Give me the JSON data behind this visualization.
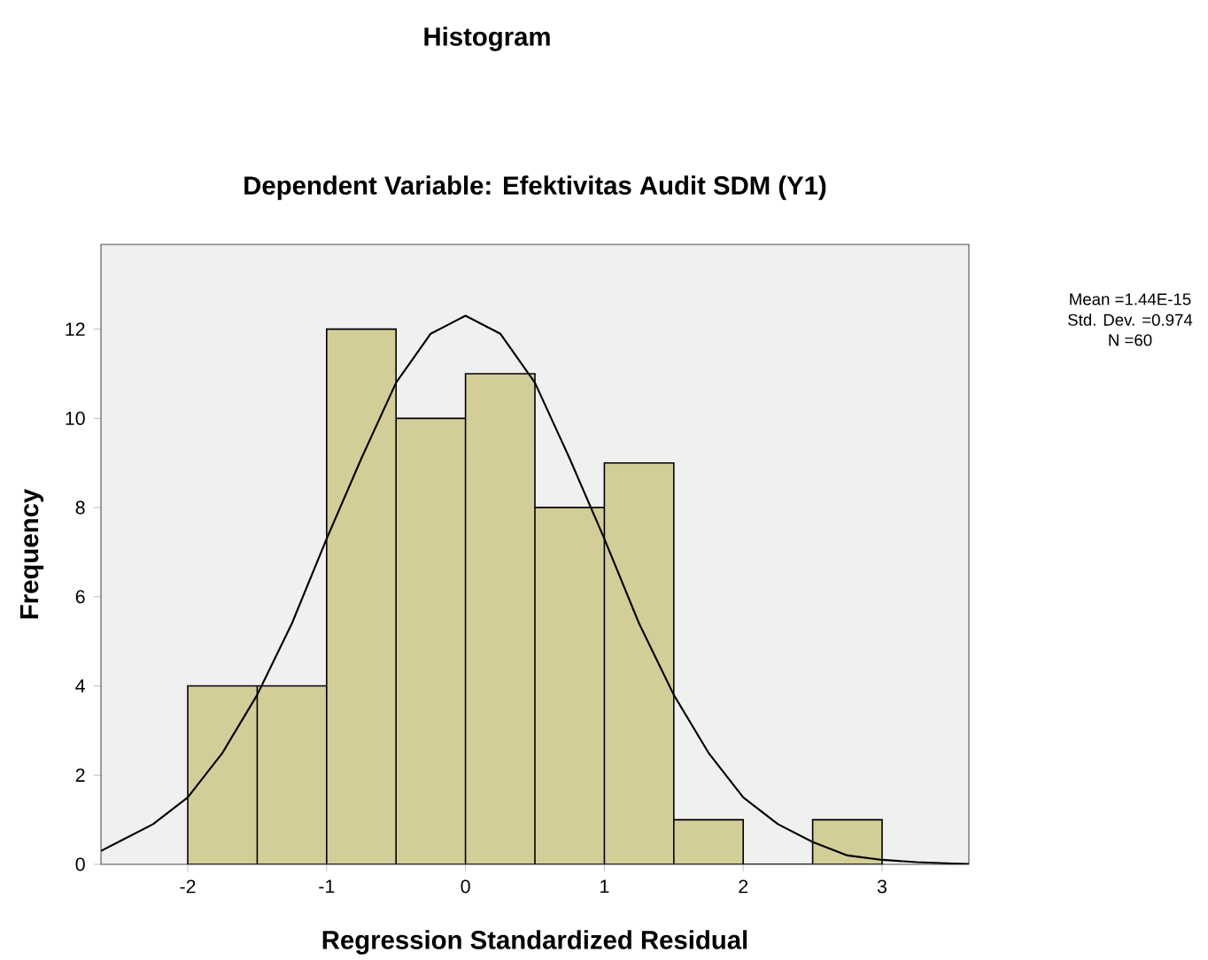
{
  "chart_data": {
    "type": "histogram",
    "title": "Histogram",
    "subtitle": "Dependent Variable: Efektivitas Audit SDM (Y1)",
    "xlabel": "Regression Standardized Residual",
    "ylabel": "Frequency",
    "bins": [
      -2,
      -1.5,
      -1,
      -0.5,
      0,
      0.5,
      1,
      1.5,
      2,
      2.5,
      3
    ],
    "values": [
      4,
      4,
      12,
      10,
      11,
      8,
      9,
      1,
      0,
      1
    ],
    "color": "#d3ce97",
    "series": [
      {
        "type": "line",
        "color": "#000000",
        "x": [
          -2.625,
          -2.5,
          -2.25,
          -2,
          -1.75,
          -1.5,
          -1.25,
          -1,
          -0.75,
          -0.5,
          -0.25,
          0,
          0.25,
          0.5,
          0.75,
          1,
          1.25,
          1.5,
          1.75,
          2,
          2.25,
          2.5,
          2.75,
          3,
          3.25,
          3.5,
          3.625
        ],
        "values": [
          0.3,
          0.5,
          0.9,
          1.5,
          2.5,
          3.8,
          5.4,
          7.3,
          9.1,
          10.8,
          11.9,
          12.3,
          11.9,
          10.8,
          9.1,
          7.3,
          5.4,
          3.8,
          2.5,
          1.5,
          0.9,
          0.5,
          0.2,
          0.1,
          0.05,
          0.02,
          0.01
        ]
      }
    ],
    "xlim": [
      -2.625,
      3.625
    ],
    "ylim": [
      0,
      13.9
    ],
    "xticks": [
      -2,
      -1,
      0,
      1,
      2,
      3
    ],
    "yticks": [
      0,
      2,
      4,
      6,
      8,
      10,
      12
    ],
    "grid": false,
    "annotations": [
      "Mean =1.44E-15",
      "Std. Dev. =0.974",
      "N =60"
    ]
  }
}
